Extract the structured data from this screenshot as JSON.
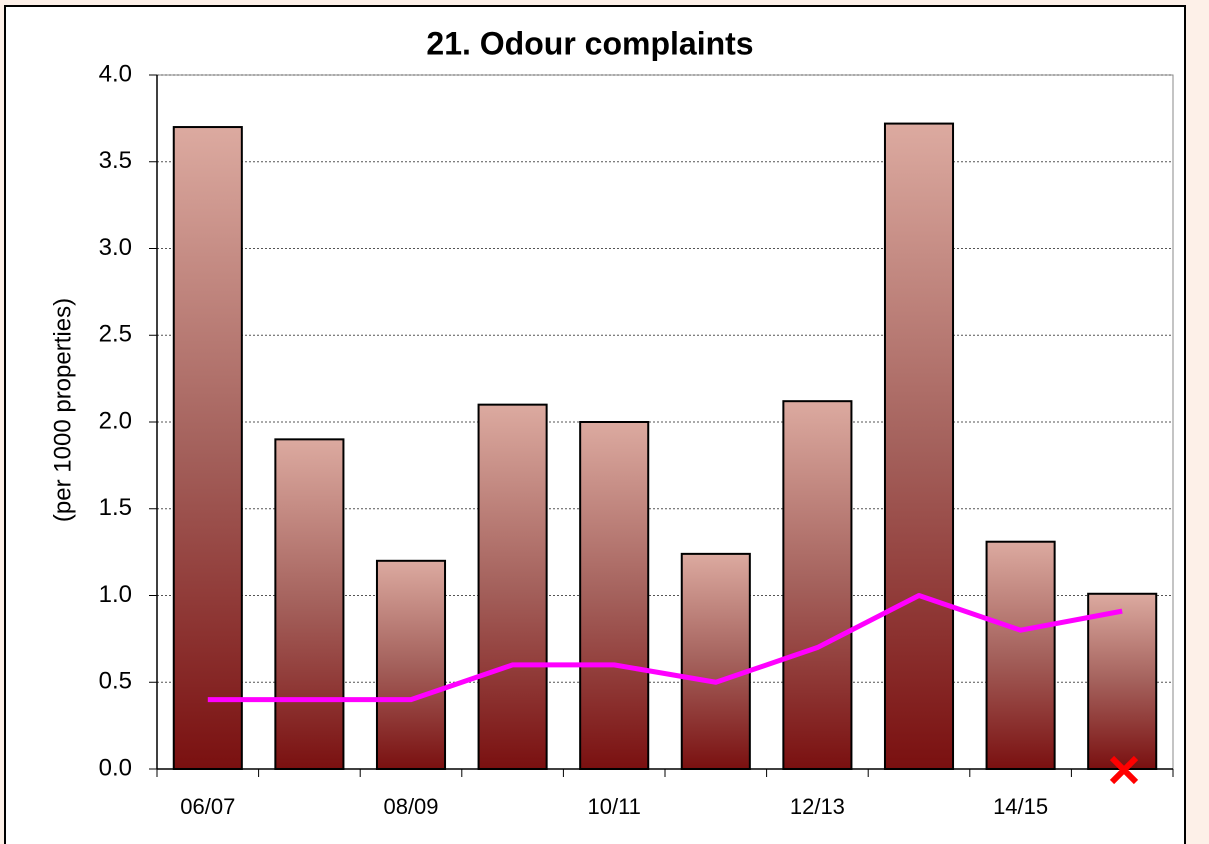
{
  "chart_data": {
    "type": "bar",
    "title": "21. Odour complaints",
    "y_label": "(per 1000 properties)",
    "categories": [
      "06/07",
      null,
      "08/09",
      null,
      "10/11",
      null,
      "12/13",
      null,
      "14/15",
      null
    ],
    "series": [
      {
        "type": "bar",
        "color": "#7a1010",
        "values": [
          3.7,
          1.9,
          1.2,
          2.1,
          2.0,
          1.24,
          2.12,
          3.72,
          1.31,
          1.01
        ]
      },
      {
        "type": "line",
        "color": "#ff00ff",
        "values": [
          0.4,
          0.4,
          0.4,
          0.6,
          0.6,
          0.5,
          0.7,
          1.0,
          0.8,
          0.91
        ]
      }
    ],
    "ylim": [
      0,
      4
    ],
    "yticks": [
      {
        "value": 0,
        "label": "0.0"
      },
      0.5,
      {
        "value": 1,
        "label": "1.0"
      },
      1.5,
      {
        "value": 2,
        "label": "2.0"
      },
      2.5,
      {
        "value": 3,
        "label": "3.0"
      },
      3.5,
      {
        "value": 4,
        "label": "4.0"
      }
    ],
    "grid": true
  }
}
